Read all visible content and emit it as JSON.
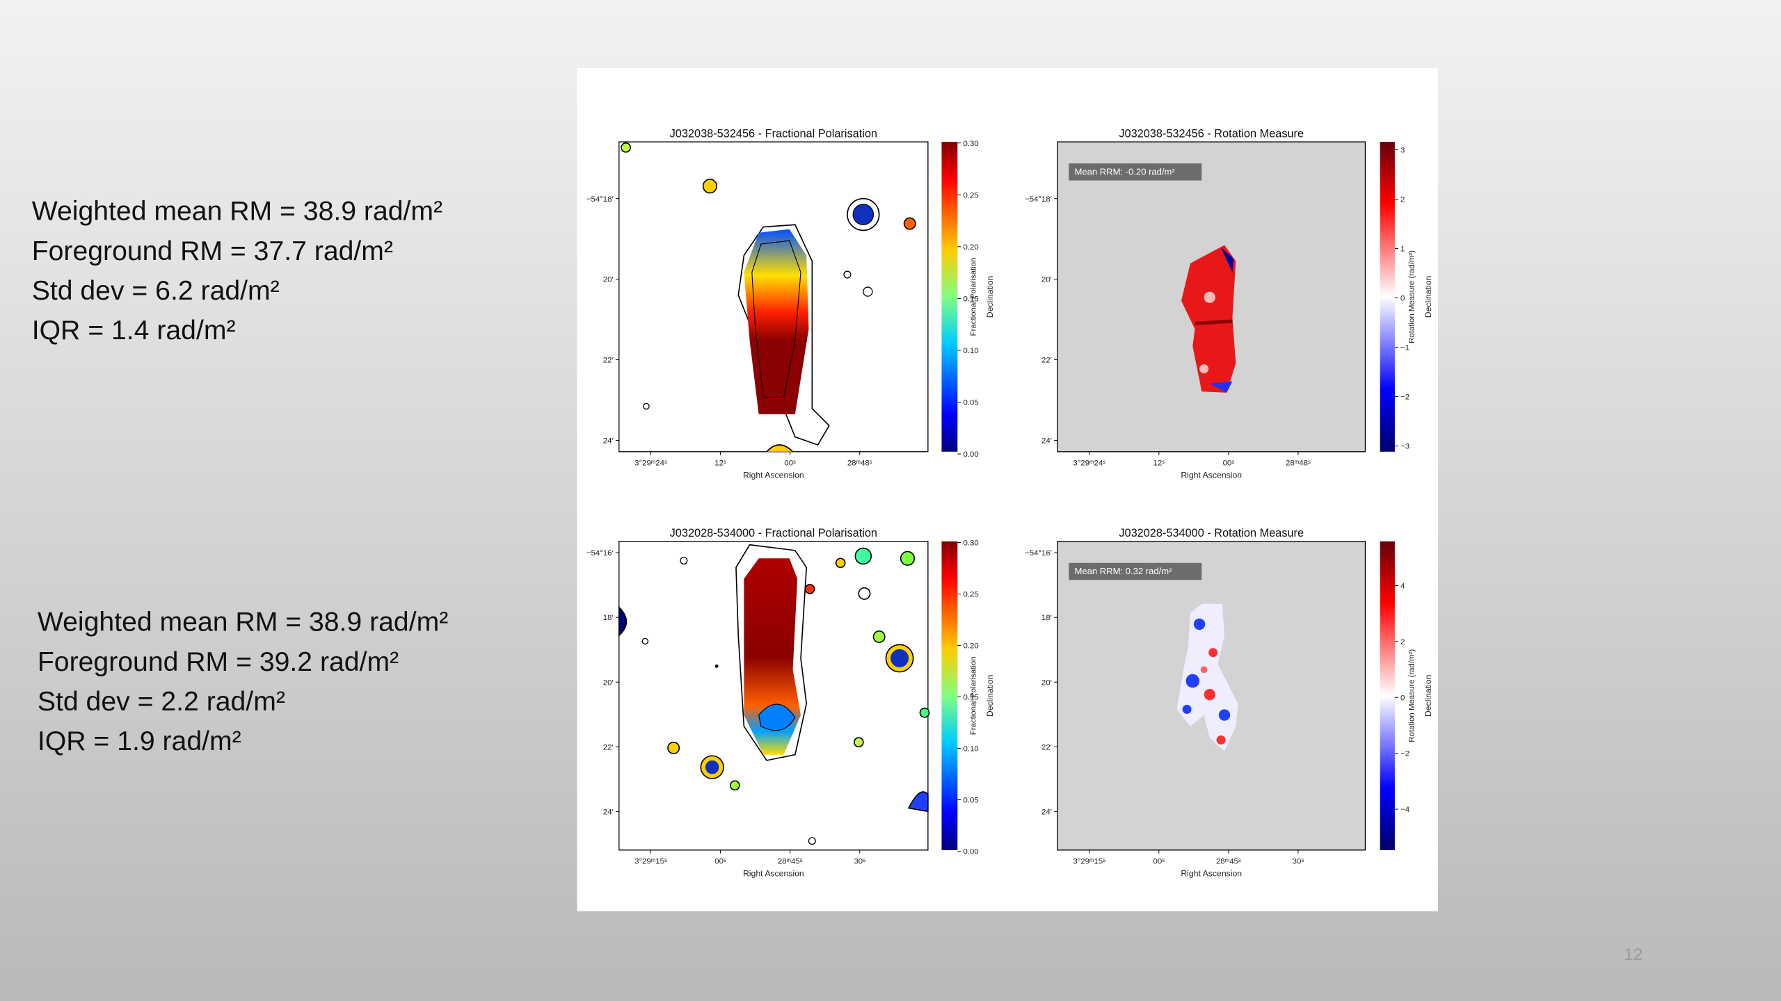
{
  "stats": [
    {
      "lines": [
        "Weighted mean RM = 38.9 rad/m²",
        "Foreground RM = 37.7 rad/m²",
        "Std dev = 6.2 rad/m²",
        "IQR = 1.4 rad/m²"
      ]
    },
    {
      "lines": [
        "Weighted mean RM = 38.9 rad/m²",
        "Foreground RM = 39.2 rad/m²",
        "Std dev = 2.2 rad/m²",
        "IQR = 1.9 rad/m²"
      ]
    }
  ],
  "panels": [
    {
      "title": "J032038-532456 - Fractional Polarisation",
      "x_ticks": [
        "3°29ᵐ24ˢ",
        "12ˢ",
        "00ˢ",
        "28ᵐ48ˢ"
      ],
      "y_ticks": [
        "−54°18′",
        "20′",
        "22′",
        "24′"
      ],
      "x_label": "Right Ascension",
      "y_label": "Declination",
      "colorbar_ticks": [
        "0.30",
        "0.25",
        "0.20",
        "0.15",
        "0.10",
        "0.05",
        "0.00"
      ],
      "colorbar_label": "Fractional Polarisation"
    },
    {
      "title": "J032038-532456 - Rotation Measure",
      "annotation": "Mean RRM: -0.20 rad/m²",
      "x_ticks": [
        "3°29ᵐ24ˢ",
        "12ˢ",
        "00ˢ",
        "28ᵐ48ˢ"
      ],
      "y_ticks": [
        "−54°18′",
        "20′",
        "22′",
        "24′"
      ],
      "x_label": "Right Ascension",
      "y_label": "Declination",
      "colorbar_ticks": [
        "3",
        "2",
        "1",
        "0",
        "−1",
        "−2",
        "−3"
      ],
      "colorbar_label": "Rotation Measure (rad/m²)"
    },
    {
      "title": "J032028-534000 - Fractional Polarisation",
      "x_ticks": [
        "3°29ᵐ15ˢ",
        "00ˢ",
        "28ᵐ45ˢ",
        "30ˢ"
      ],
      "y_ticks": [
        "−54°16′",
        "18′",
        "20′",
        "22′",
        "24′"
      ],
      "x_label": "Right Ascension",
      "y_label": "Declination",
      "colorbar_ticks": [
        "0.30",
        "0.25",
        "0.20",
        "0.15",
        "0.10",
        "0.05",
        "0.00"
      ],
      "colorbar_label": "Fractional Polarisation"
    },
    {
      "title": "J032028-534000 - Rotation Measure",
      "annotation": "Mean RRM: 0.32 rad/m²",
      "x_ticks": [
        "3°29ᵐ15ˢ",
        "00ˢ",
        "28ᵐ45ˢ",
        "30ˢ"
      ],
      "y_ticks": [
        "−54°16′",
        "18′",
        "20′",
        "22′",
        "24′"
      ],
      "x_label": "Right Ascension",
      "y_label": "Declination",
      "colorbar_ticks": [
        "4",
        "2",
        "0",
        "−2",
        "−4"
      ],
      "colorbar_label": "Rotation Measure (rad/m²)"
    }
  ],
  "page_number": "12"
}
